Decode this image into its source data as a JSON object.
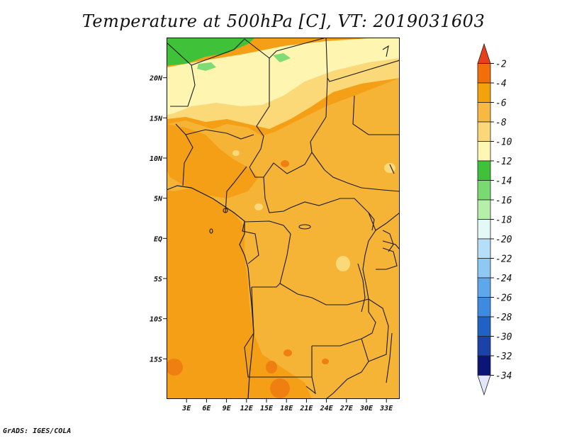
{
  "title": "Temperature at 500hPa [C], VT: 2019031603",
  "credit": "GrADS: IGES/COLA",
  "map": {
    "lon_range": [
      0,
      35
    ],
    "lat_range": [
      -20,
      25
    ],
    "lat_ticks": [
      {
        "label": "20N",
        "value": 20
      },
      {
        "label": "15N",
        "value": 15
      },
      {
        "label": "10N",
        "value": 10
      },
      {
        "label": "5N",
        "value": 5
      },
      {
        "label": "EQ",
        "value": 0
      },
      {
        "label": "5S",
        "value": -5
      },
      {
        "label": "10S",
        "value": -10
      },
      {
        "label": "15S",
        "value": -15
      }
    ],
    "lon_ticks": [
      {
        "label": "3E",
        "value": 3
      },
      {
        "label": "6E",
        "value": 6
      },
      {
        "label": "9E",
        "value": 9
      },
      {
        "label": "12E",
        "value": 12
      },
      {
        "label": "15E",
        "value": 15
      },
      {
        "label": "18E",
        "value": 18
      },
      {
        "label": "21E",
        "value": 21
      },
      {
        "label": "24E",
        "value": 24
      },
      {
        "label": "27E",
        "value": 27
      },
      {
        "label": "30E",
        "value": 30
      },
      {
        "label": "33E",
        "value": 33
      }
    ]
  },
  "colorbar": {
    "levels": [
      "-2",
      "-4",
      "-6",
      "-8",
      "-10",
      "-12",
      "-14",
      "-16",
      "-18",
      "-20",
      "-22",
      "-24",
      "-26",
      "-28",
      "-30",
      "-32",
      "-34"
    ],
    "colors_top_to_bottom": [
      "#e8401c",
      "#f36e0a",
      "#f4a20c",
      "#f7b942",
      "#fbd877",
      "#fdf7b3",
      "#3fc23a",
      "#79db6f",
      "#b6f0a8",
      "#e3f9f5",
      "#b5dff8",
      "#8ec8f3",
      "#5ea7ea",
      "#3d8ae0",
      "#1f61c4",
      "#1a42a8",
      "#0a1577",
      "#e3e6f8"
    ]
  },
  "colors": {
    "ocean": "#f59f16",
    "land_main": "#f6b436",
    "warm_patch": "#f07f12",
    "cool_light": "#fbd978",
    "cool_pale": "#fdf5b0",
    "green": "#3fc23a",
    "green_light": "#7fdb73",
    "border": "#1a1a1a"
  }
}
